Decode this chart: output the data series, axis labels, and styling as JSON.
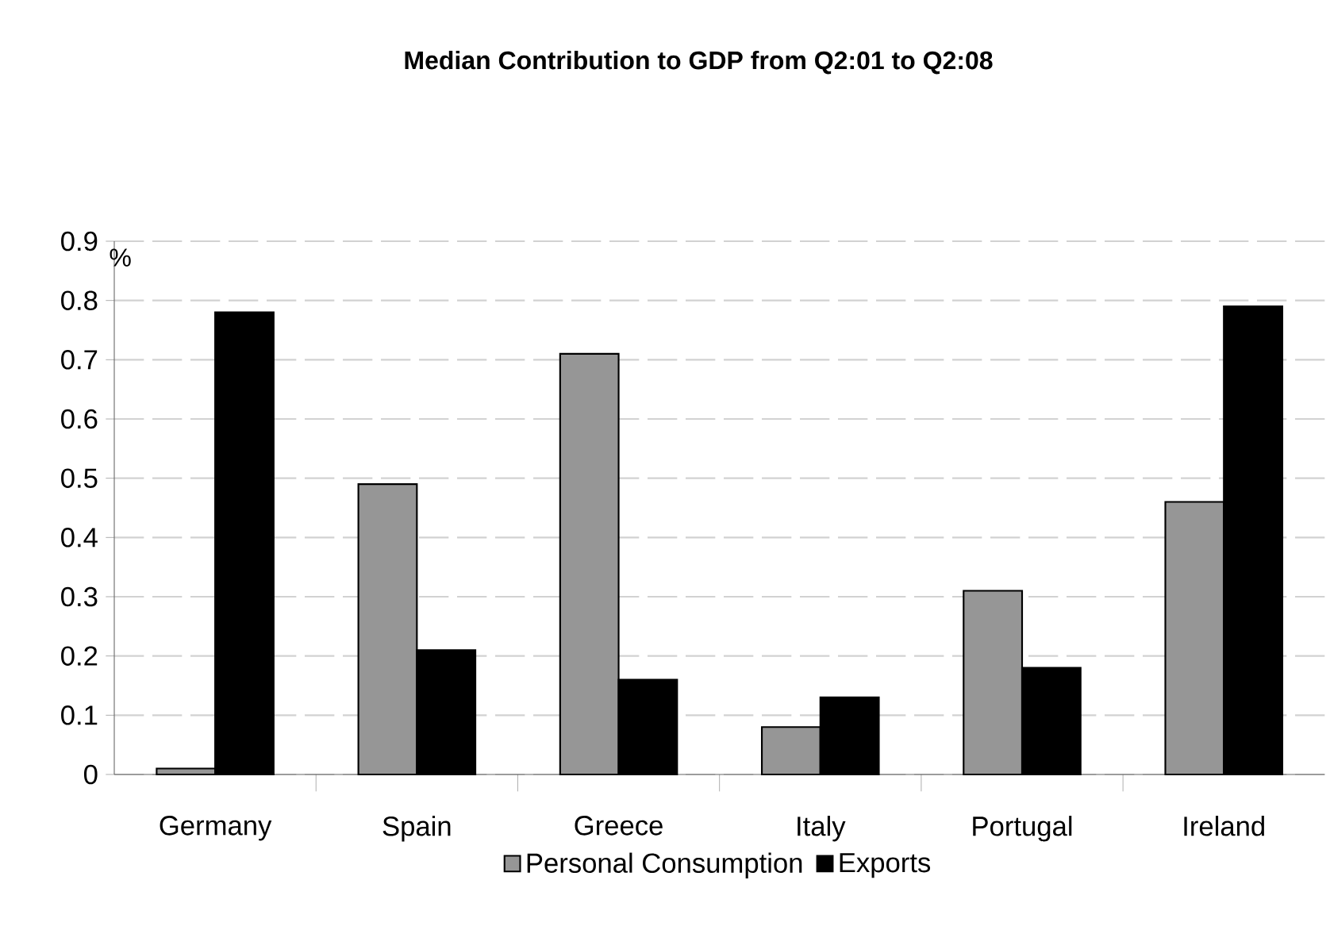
{
  "chart_data": {
    "type": "bar",
    "title": "Median Contribution to GDP from Q2:01 to Q2:08",
    "ylabel": "%",
    "categories": [
      "Germany",
      "Spain",
      "Greece",
      "Italy",
      "Portugal",
      "Ireland"
    ],
    "series": [
      {
        "name": "Personal Consumption",
        "color": "#969696",
        "values": [
          0.01,
          0.49,
          0.71,
          0.08,
          0.31,
          0.46
        ]
      },
      {
        "name": "Exports",
        "color": "#000000",
        "values": [
          0.78,
          0.21,
          0.16,
          0.13,
          0.18,
          0.79
        ]
      }
    ],
    "ylim": [
      0,
      0.9
    ],
    "yticks": [
      0,
      0.1,
      0.2,
      0.3,
      0.4,
      0.5,
      0.6,
      0.7,
      0.8,
      0.9
    ],
    "grid": "y",
    "legend": "bottom"
  }
}
